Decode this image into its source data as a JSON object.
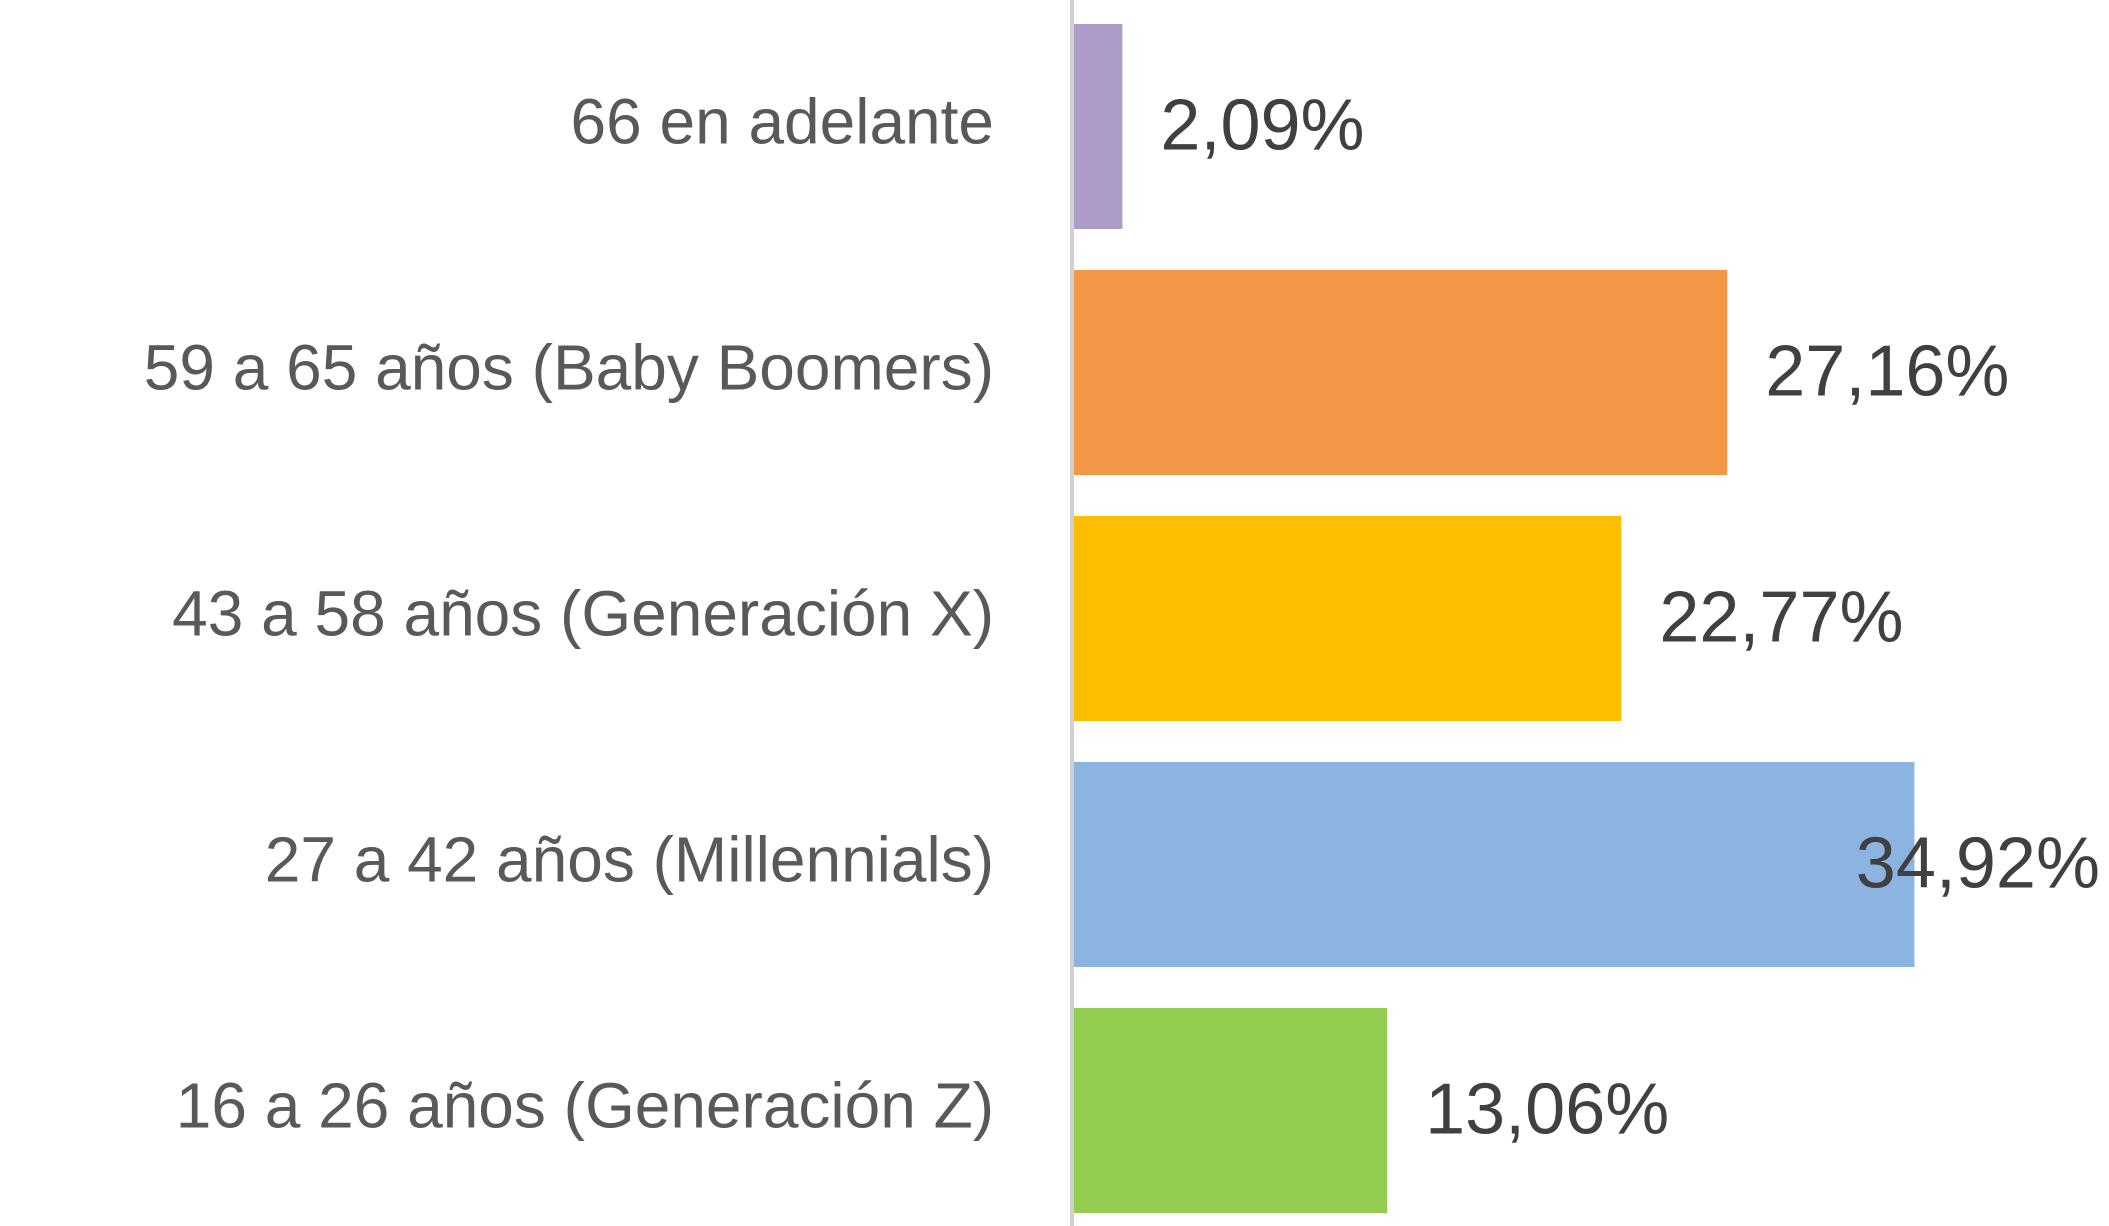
{
  "chart_data": {
    "type": "barh",
    "categories": [
      "66 en adelante",
      "59 a 65 años (Baby Boomers)",
      "43 a 58 años (Generación X)",
      "27 a 42 años (Millennials)",
      "16 a 26 años (Generación Z)"
    ],
    "values": [
      2.09,
      27.16,
      22.77,
      34.92,
      13.06
    ],
    "value_labels": [
      "2,09%",
      "27,16%",
      "22,77%",
      "34,92%",
      "13,06%"
    ],
    "colors": [
      "#ac9dc8",
      "#f39747",
      "#fdbe00",
      "#8cb4e1",
      "#92cd50"
    ],
    "xlim": [
      0,
      40
    ]
  }
}
